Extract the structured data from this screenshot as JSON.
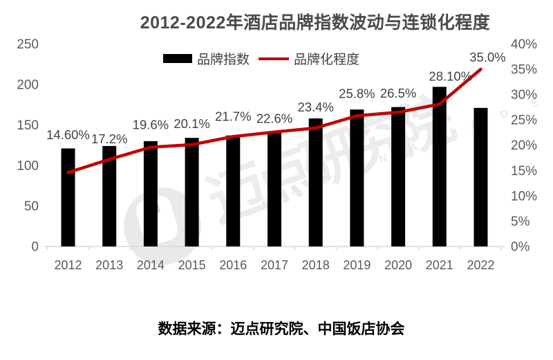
{
  "title": "2012-2022年酒店品牌指数波动与连锁化程度",
  "source_text": "数据来源：迈点研究院、中国饭店协会",
  "legend": {
    "bar_label": "品牌指数",
    "line_label": "品牌化程度"
  },
  "watermark": {
    "cn": "迈点研究院",
    "en": "M E A D I N  A C A D E M Y"
  },
  "colors": {
    "bar": "#000000",
    "line": "#c00000",
    "title_text": "#4a4a4a",
    "axis_text": "#595959",
    "data_label_text": "#404040",
    "axis_line": "#d9d9d9"
  },
  "chart_data": {
    "type": "bar",
    "subtype": "bar+line combo, dual axis",
    "title": "2012-2022年酒店品牌指数波动与连锁化程度",
    "categories": [
      "2012",
      "2013",
      "2014",
      "2015",
      "2016",
      "2017",
      "2018",
      "2019",
      "2020",
      "2021",
      "2022"
    ],
    "series": [
      {
        "name": "品牌指数",
        "type": "bar",
        "axis": "left",
        "values": [
          121,
          124,
          130,
          134,
          137,
          142,
          158,
          169,
          172,
          197,
          171
        ]
      },
      {
        "name": "品牌化程度",
        "type": "line",
        "axis": "right",
        "values": [
          14.6,
          17.2,
          19.6,
          20.1,
          21.7,
          22.6,
          23.4,
          25.8,
          26.5,
          28.1,
          35.0
        ],
        "labels": [
          "14.60%",
          "17.2%",
          "19.6%",
          "20.1%",
          "21.7%",
          "22.6%",
          "23.4%",
          "25.8%",
          "26.5%",
          "28.10%",
          "35.0%"
        ]
      }
    ],
    "left_axis": {
      "range": [
        0,
        250
      ],
      "ticks": [
        0,
        50,
        100,
        150,
        200,
        250
      ]
    },
    "right_axis": {
      "range": [
        0,
        40
      ],
      "tick_values": [
        0,
        5,
        10,
        15,
        20,
        25,
        30,
        35,
        40
      ],
      "tick_labels": [
        "0%",
        "5%",
        "10%",
        "15%",
        "20%",
        "25%",
        "30%",
        "35%",
        "40%"
      ]
    },
    "layout_hints": {
      "grid": false,
      "legend_position": "top-center",
      "label_dx": [
        0,
        0,
        0,
        0,
        0,
        0,
        0,
        0,
        0,
        16,
        10
      ],
      "label_dy": [
        -48,
        -23,
        -26,
        -24,
        -23,
        -13,
        -24,
        -26,
        -21,
        -34,
        -11
      ]
    }
  }
}
